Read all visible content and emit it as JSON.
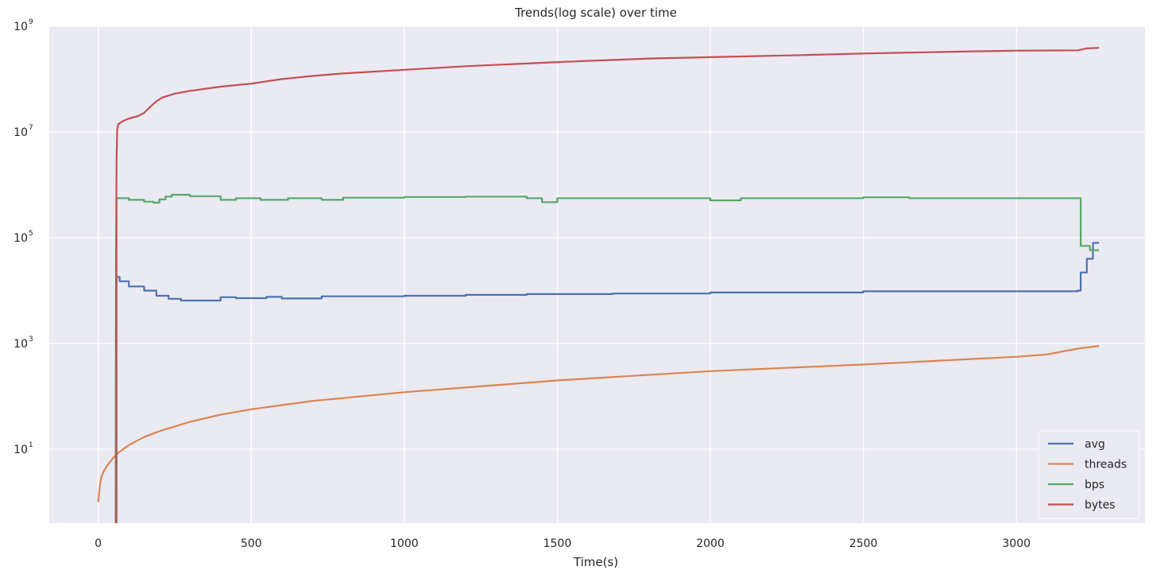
{
  "chart_data": {
    "type": "line",
    "title": "Trends(log scale) over time",
    "xlabel": "Time(s)",
    "ylabel": "",
    "yscale": "log",
    "xlim": [
      -160,
      3420
    ],
    "ylim": [
      0.4,
      1000000000.0
    ],
    "grid": true,
    "legend_placement": "bottom-right",
    "background": "#EAEAF2",
    "x_ticks": [
      0,
      500,
      1000,
      1500,
      2000,
      2500,
      3000
    ],
    "x_tick_labels": [
      "0",
      "500",
      "1000",
      "1500",
      "2000",
      "2500",
      "3000"
    ],
    "y_ticks": [
      10,
      1000,
      100000,
      10000000,
      1000000000
    ],
    "y_tick_labels": [
      {
        "base": "10",
        "exp": "1"
      },
      {
        "base": "10",
        "exp": "3"
      },
      {
        "base": "10",
        "exp": "5"
      },
      {
        "base": "10",
        "exp": "7"
      },
      {
        "base": "10",
        "exp": "9"
      }
    ],
    "series": [
      {
        "name": "avg",
        "color": "#4C72B0",
        "step": true,
        "x": [
          57,
          60,
          70,
          100,
          150,
          190,
          230,
          270,
          390,
          400,
          450,
          550,
          600,
          730,
          1000,
          1200,
          1400,
          1680,
          2000,
          2500,
          3200,
          3210,
          3230,
          3250,
          3270
        ],
        "y": [
          0.2,
          18000,
          15000,
          12000,
          10000,
          8000,
          7000,
          6500,
          6500,
          7500,
          7200,
          7600,
          7100,
          7800,
          8000,
          8300,
          8600,
          8800,
          9200,
          9700,
          10000,
          22000,
          40000,
          80000,
          80000
        ]
      },
      {
        "name": "threads",
        "color": "#DD8452",
        "step": false,
        "x": [
          0,
          5,
          10,
          20,
          30,
          50,
          70,
          100,
          150,
          200,
          300,
          400,
          500,
          700,
          1000,
          1500,
          2000,
          2500,
          2800,
          3000,
          3100,
          3200,
          3270
        ],
        "y": [
          1,
          2,
          3,
          4,
          5,
          7,
          9,
          12,
          17,
          22,
          33,
          45,
          57,
          82,
          120,
          200,
          300,
          400,
          490,
          560,
          620,
          800,
          900
        ]
      },
      {
        "name": "bps",
        "color": "#55A868",
        "step": true,
        "x": [
          57,
          60,
          100,
          150,
          180,
          200,
          220,
          240,
          300,
          400,
          450,
          530,
          620,
          730,
          800,
          1000,
          1200,
          1400,
          1450,
          1500,
          2000,
          2100,
          2500,
          2650,
          3200,
          3210,
          3240,
          3270
        ],
        "y": [
          0.2,
          560000,
          520000,
          480000,
          460000,
          530000,
          600000,
          650000,
          610000,
          520000,
          560000,
          520000,
          560000,
          520000,
          570000,
          590000,
          600000,
          560000,
          470000,
          560000,
          510000,
          560000,
          580000,
          560000,
          560000,
          70000,
          58000,
          58000
        ]
      },
      {
        "name": "bytes",
        "color": "#C44E52",
        "step": false,
        "x": [
          57,
          58,
          60,
          62,
          65,
          80,
          100,
          130,
          150,
          170,
          190,
          210,
          250,
          300,
          400,
          500,
          600,
          700,
          800,
          1000,
          1200,
          1500,
          1800,
          2000,
          2300,
          2500,
          2800,
          3000,
          3200,
          3230,
          3270
        ],
        "y": [
          0.2,
          20000,
          3000000,
          11000000,
          14000000,
          16000000,
          18000000,
          20000000,
          23000000,
          30000000,
          38000000,
          45000000,
          53000000,
          60000000,
          72000000,
          82000000,
          100000000,
          115000000,
          128000000,
          150000000,
          175000000,
          210000000,
          245000000,
          260000000,
          285000000,
          305000000,
          330000000,
          345000000,
          350000000,
          380000000,
          390000000
        ]
      }
    ]
  }
}
